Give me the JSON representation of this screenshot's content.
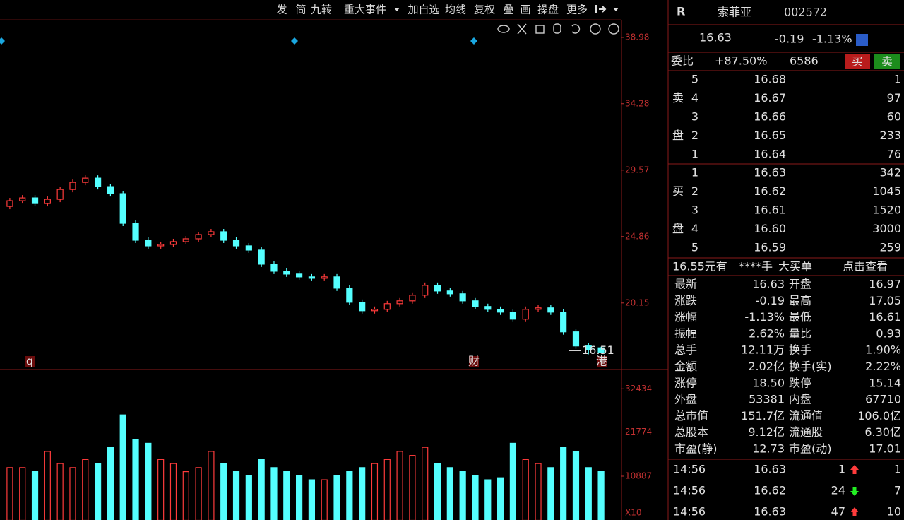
{
  "toolbar": [
    "发",
    "简",
    "九转",
    "重大事件",
    "加自选",
    "均线",
    "复权",
    "叠",
    "画",
    "操盘",
    "更多"
  ],
  "events": [
    "q",
    "财",
    "港"
  ],
  "chart_data": [
    {
      "type": "candlestick",
      "ylim": [
        15.48,
        40.23
      ],
      "yticks": [
        20.15,
        24.86,
        29.57,
        34.28,
        38.98
      ],
      "low_label": 16.51,
      "open": [
        27.0,
        27.4,
        27.6,
        27.2,
        27.5,
        28.2,
        28.7,
        29.0,
        28.4,
        27.9,
        25.8,
        24.6,
        24.2,
        24.3,
        24.5,
        24.7,
        25.0,
        25.2,
        24.6,
        24.2,
        23.9,
        22.9,
        22.4,
        22.2,
        22.0,
        21.9,
        22.0,
        21.2,
        20.2,
        19.6,
        19.7,
        20.1,
        20.3,
        20.7,
        21.4,
        21.0,
        20.8,
        20.3,
        19.9,
        19.7,
        19.5,
        19.0,
        19.7,
        19.8,
        19.5,
        18.1,
        17.1,
        16.97
      ],
      "high": [
        27.6,
        27.8,
        27.8,
        27.7,
        28.4,
        28.9,
        29.2,
        29.2,
        28.6,
        28.1,
        26.0,
        24.8,
        24.5,
        24.7,
        24.9,
        25.2,
        25.4,
        25.4,
        24.8,
        24.4,
        24.1,
        23.1,
        22.6,
        22.4,
        22.2,
        22.2,
        22.2,
        21.4,
        20.4,
        19.9,
        20.3,
        20.5,
        20.9,
        21.6,
        21.6,
        21.2,
        21.0,
        20.5,
        20.1,
        19.9,
        19.7,
        19.9,
        20.0,
        20.0,
        19.7,
        18.3,
        17.3,
        17.05
      ],
      "low": [
        26.8,
        27.2,
        27.0,
        27.0,
        27.3,
        28.0,
        28.5,
        28.2,
        27.7,
        25.6,
        24.4,
        24.0,
        24.0,
        24.1,
        24.3,
        24.5,
        24.8,
        24.4,
        24.0,
        23.7,
        22.7,
        22.2,
        22.0,
        21.8,
        21.7,
        21.7,
        21.0,
        20.0,
        19.4,
        19.4,
        19.5,
        19.9,
        20.1,
        20.5,
        20.8,
        20.6,
        20.1,
        19.7,
        19.5,
        19.3,
        18.8,
        18.8,
        19.5,
        19.3,
        17.9,
        16.9,
        16.51,
        16.61
      ],
      "close": [
        27.4,
        27.6,
        27.2,
        27.5,
        28.2,
        28.7,
        29.0,
        28.4,
        27.9,
        25.8,
        24.6,
        24.2,
        24.3,
        24.5,
        24.7,
        25.0,
        25.2,
        24.6,
        24.2,
        23.9,
        22.9,
        22.4,
        22.2,
        22.0,
        21.9,
        22.0,
        21.2,
        20.2,
        19.6,
        19.7,
        20.1,
        20.3,
        20.7,
        21.4,
        21.0,
        20.8,
        20.3,
        19.9,
        19.7,
        19.5,
        19.0,
        19.7,
        19.8,
        19.5,
        18.1,
        17.1,
        16.82,
        16.63
      ]
    },
    {
      "type": "bar",
      "ylim": [
        0,
        36840
      ],
      "yticks": [
        10887,
        21774,
        32434
      ],
      "y_unit": "X10",
      "values": [
        13000,
        13000,
        12000,
        17000,
        14000,
        13000,
        15000,
        14000,
        18000,
        26000,
        20000,
        19000,
        15000,
        14000,
        12000,
        13000,
        17000,
        14000,
        12000,
        11000,
        15000,
        13000,
        12000,
        11000,
        10000,
        10000,
        11000,
        12000,
        13000,
        14000,
        15000,
        17000,
        16000,
        18000,
        14000,
        13000,
        12000,
        11000,
        10000,
        10500,
        19000,
        15000,
        14000,
        13000,
        18000,
        17000,
        13000,
        12110
      ]
    }
  ],
  "quote": {
    "flag": "R",
    "name": "索菲亚",
    "code": "002572",
    "price": "16.63",
    "change": "-0.19",
    "change_pct": "-1.13%",
    "ratio_label": "委比",
    "ratio": "+87.50%",
    "ratio_diff": "6586",
    "buy": "买",
    "sell": "卖"
  },
  "order_book": {
    "sell_label": [
      "卖",
      "盘"
    ],
    "buy_label": [
      "买",
      "盘"
    ],
    "asks": [
      [
        "5",
        "16.68",
        "1"
      ],
      [
        "4",
        "16.67",
        "97"
      ],
      [
        "3",
        "16.66",
        "60"
      ],
      [
        "2",
        "16.65",
        "233"
      ],
      [
        "1",
        "16.64",
        "76"
      ]
    ],
    "bids": [
      [
        "1",
        "16.63",
        "342"
      ],
      [
        "2",
        "16.62",
        "1045"
      ],
      [
        "3",
        "16.61",
        "1520"
      ],
      [
        "4",
        "16.60",
        "3000"
      ],
      [
        "5",
        "16.59",
        "259"
      ]
    ]
  },
  "banner": [
    "16.55元有",
    "****手",
    "大买单",
    "点击查看"
  ],
  "stats": [
    [
      "最新",
      "16.63",
      "开盘",
      "16.97"
    ],
    [
      "涨跌",
      "-0.19",
      "最高",
      "17.05"
    ],
    [
      "涨幅",
      "-1.13%",
      "最低",
      "16.61"
    ],
    [
      "振幅",
      "2.62%",
      "量比",
      "0.93"
    ],
    [
      "总手",
      "12.11万",
      "换手",
      "1.90%"
    ],
    [
      "金额",
      "2.02亿",
      "换手(实)",
      "2.22%"
    ],
    [
      "涨停",
      "18.50",
      "跌停",
      "15.14"
    ],
    [
      "外盘",
      "53381",
      "内盘",
      "67710"
    ],
    [
      "总市值",
      "151.7亿",
      "流通值",
      "106.0亿"
    ],
    [
      "总股本",
      "9.12亿",
      "流通股",
      "6.30亿"
    ],
    [
      "市盈(静)",
      "12.73",
      "市盈(动)",
      "17.01"
    ]
  ],
  "ticks": [
    [
      "14:56",
      "16.63",
      "1",
      "up",
      "1"
    ],
    [
      "14:56",
      "16.62",
      "24",
      "down",
      "7"
    ],
    [
      "14:56",
      "16.63",
      "47",
      "up",
      "10"
    ]
  ]
}
